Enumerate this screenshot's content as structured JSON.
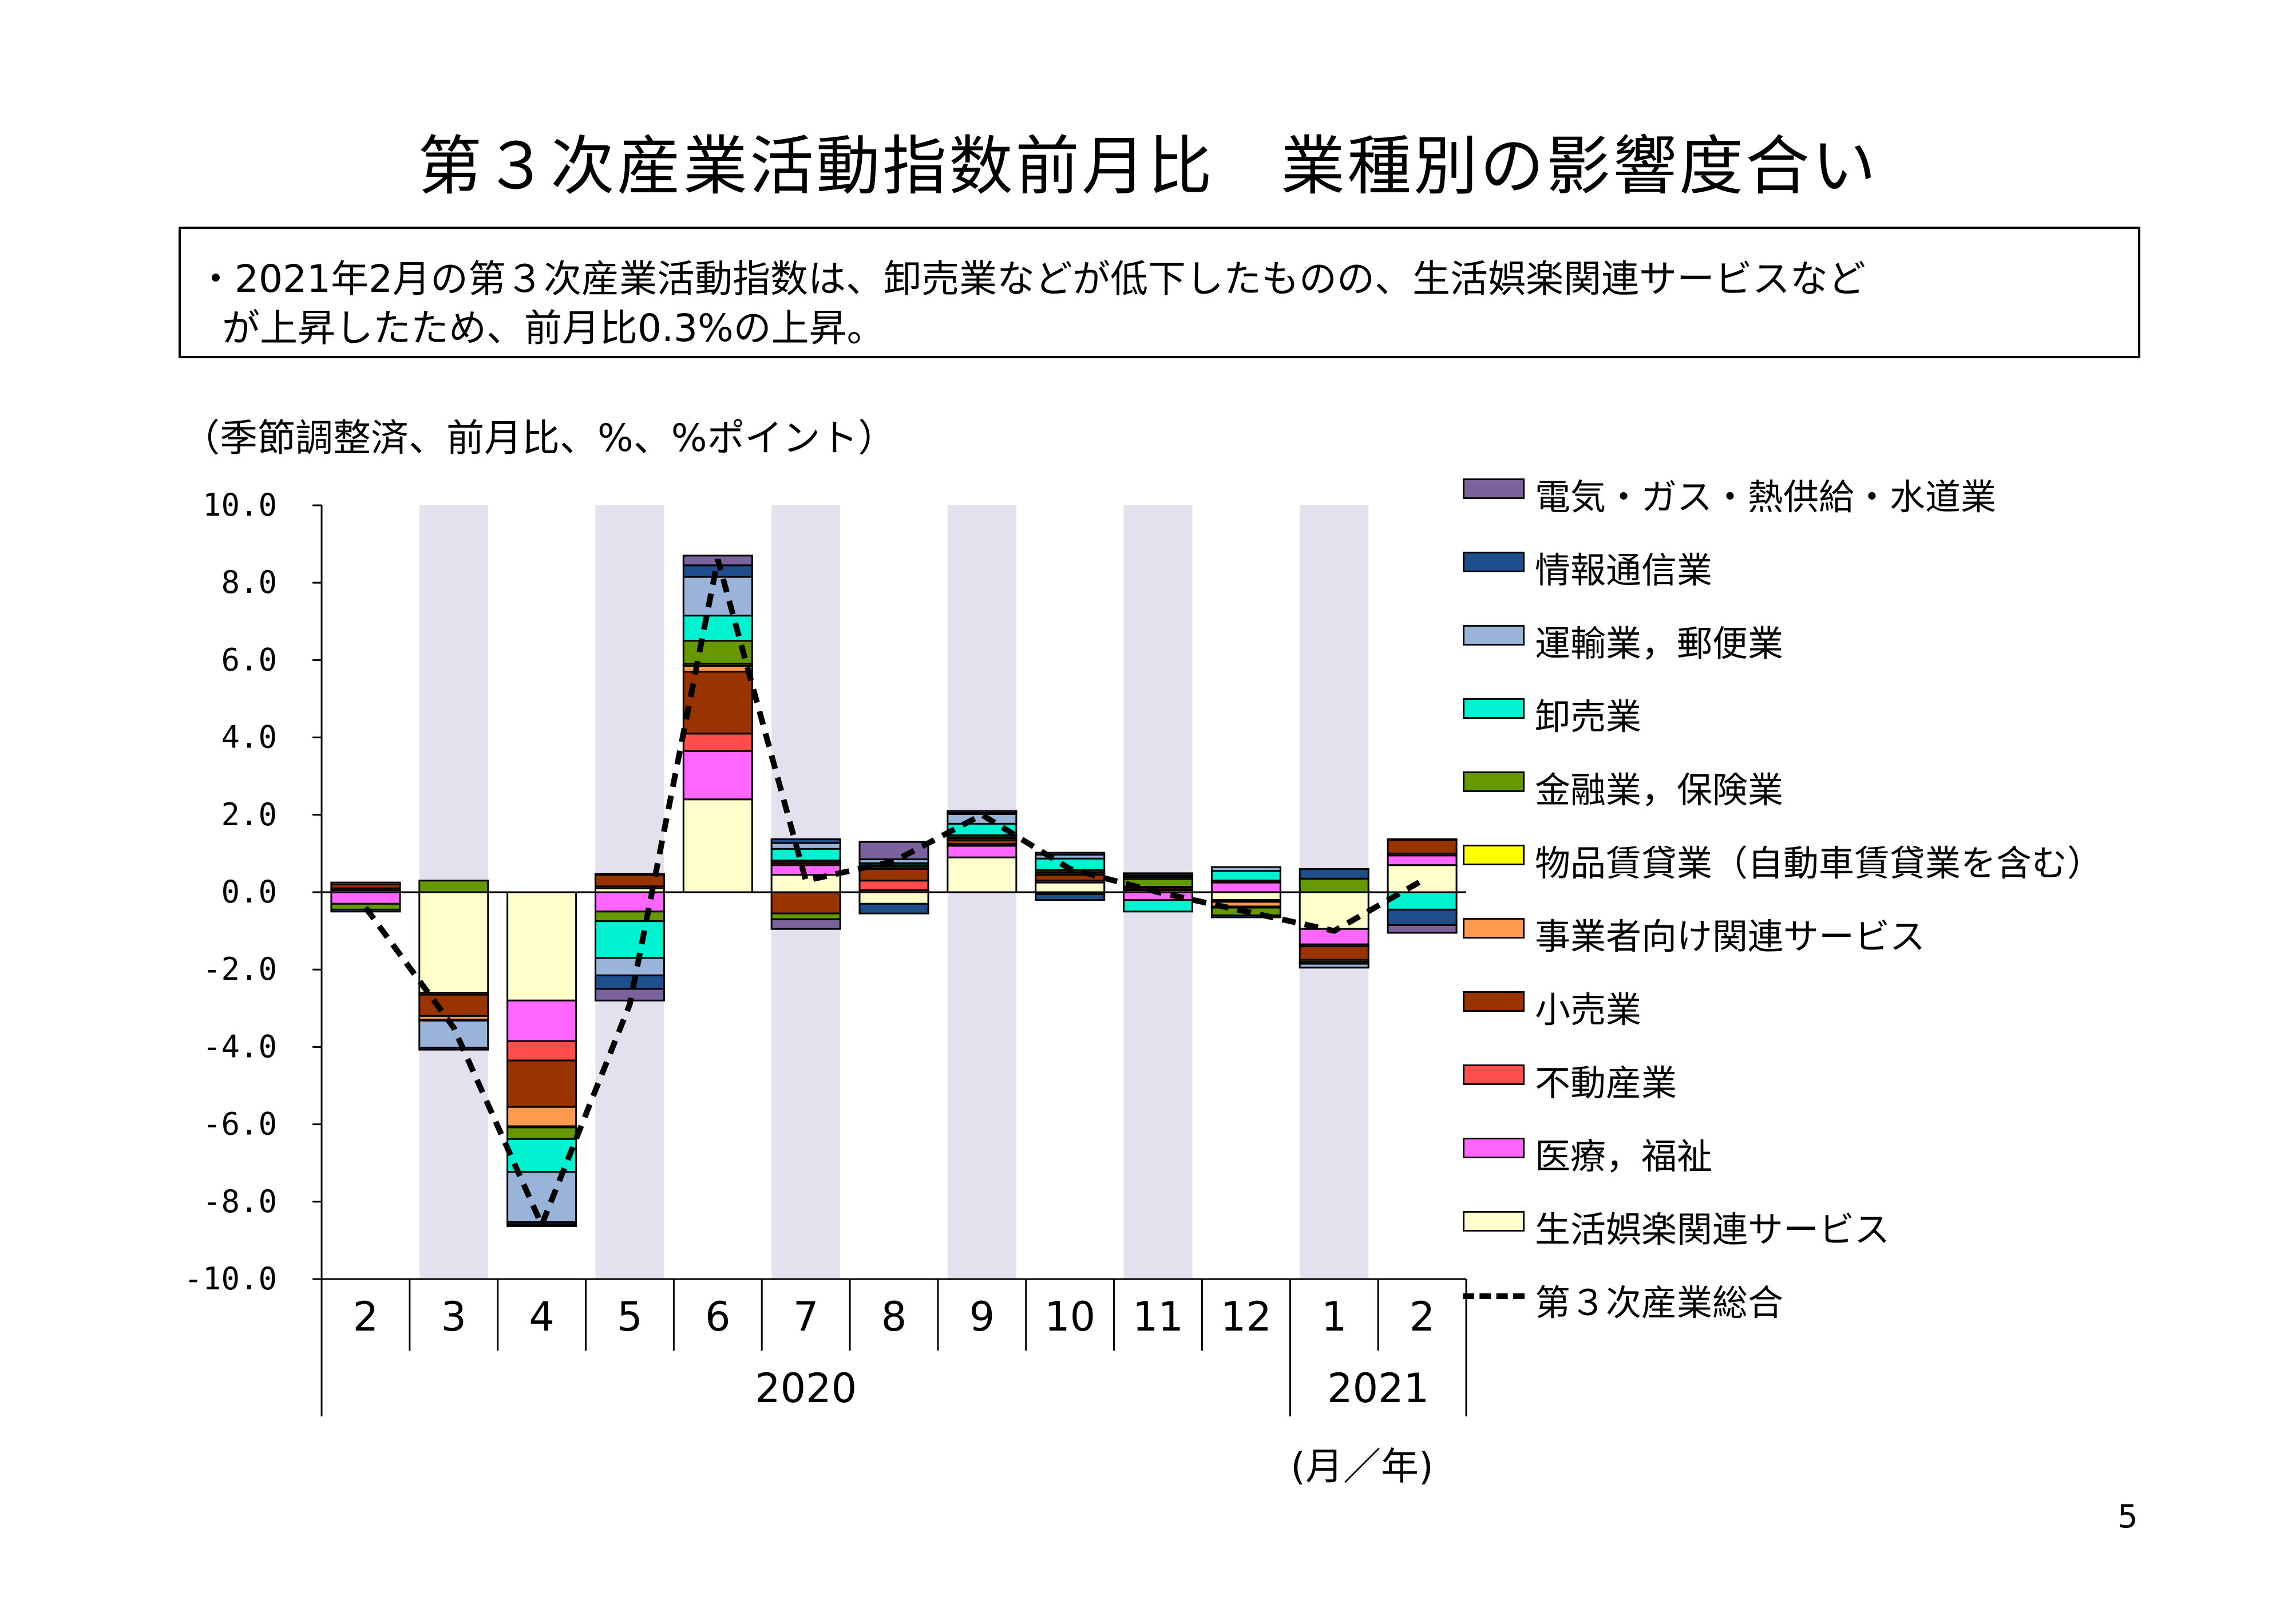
{
  "title": "第３次産業活動指数前月比　業種別の影響度合い",
  "summary": {
    "line1": "・2021年2月の第３次産業活動指数は、卸売業などが低下したものの、生活娯楽関連サービスなど",
    "line2": "が上昇したため、前月比0.3%の上昇。"
  },
  "unit_note": "（季節調整済、前月比、%、%ポイント）",
  "page_number": "5",
  "chart_data": {
    "type": "bar",
    "stacked": true,
    "categories": [
      "2",
      "3",
      "4",
      "5",
      "6",
      "7",
      "8",
      "9",
      "10",
      "11",
      "12",
      "1",
      "2"
    ],
    "year_labels": [
      {
        "label": "2020",
        "from": 0,
        "to": 10
      },
      {
        "label": "2021",
        "from": 11,
        "to": 12
      }
    ],
    "x_unit_label": "(月／年)",
    "ylim": [
      -10,
      10
    ],
    "yticks": [
      10,
      8,
      6,
      4,
      2,
      0,
      -2,
      -4,
      -6,
      -8,
      -10
    ],
    "ytick_labels": [
      "10.0",
      "8.0",
      "6.0",
      "4.0",
      "2.0",
      "0.0",
      "-2.0",
      "-4.0",
      "-6.0",
      "-8.0",
      "-10.0"
    ],
    "shaded_categories": [
      1,
      3,
      5,
      7,
      9,
      11
    ],
    "shade_color": "#e4e0ee",
    "series": [
      {
        "name": "生活娯楽関連サービス",
        "color": "#ffffcc",
        "values": [
          0.05,
          -2.6,
          -2.8,
          0.1,
          2.4,
          0.45,
          -0.3,
          0.9,
          0.25,
          0.05,
          -0.2,
          -0.95,
          0.7
        ]
      },
      {
        "name": "医療，福祉",
        "color": "#ff66ff",
        "values": [
          -0.3,
          0.0,
          -1.05,
          -0.5,
          1.25,
          0.25,
          0.05,
          0.3,
          0.05,
          -0.2,
          0.25,
          -0.4,
          0.25
        ]
      },
      {
        "name": "不動産業",
        "color": "#ff4d4d",
        "values": [
          0.05,
          -0.05,
          -0.5,
          0.05,
          0.45,
          0.05,
          0.25,
          0.05,
          -0.05,
          0.02,
          -0.05,
          -0.05,
          0.05
        ]
      },
      {
        "name": "小売業",
        "color": "#993300",
        "values": [
          0.1,
          -0.55,
          -1.2,
          0.3,
          1.6,
          -0.55,
          0.3,
          0.1,
          0.15,
          0.05,
          0.05,
          -0.35,
          0.35
        ]
      },
      {
        "name": "事業者向け関連サービス",
        "color": "#ff9950",
        "values": [
          0.05,
          -0.1,
          -0.5,
          0.02,
          0.15,
          0.05,
          0.05,
          0.05,
          0.05,
          0.02,
          -0.12,
          -0.05,
          0.02
        ]
      },
      {
        "name": "物品賃貸業（自動車賃貸業を含む）",
        "color": "#ffff00",
        "values": [
          0.0,
          -0.02,
          -0.03,
          0.0,
          0.05,
          0.02,
          0.0,
          0.02,
          0.02,
          0.0,
          -0.03,
          0.0,
          0.0
        ]
      },
      {
        "name": "金融業，保険業",
        "color": "#669900",
        "values": [
          -0.15,
          0.3,
          -0.3,
          -0.25,
          0.6,
          -0.15,
          0.05,
          0.05,
          0.05,
          0.2,
          -0.2,
          0.35,
          0.0
        ]
      },
      {
        "name": "卸売業",
        "color": "#00f2d0",
        "values": [
          0.0,
          0.0,
          -0.85,
          -0.95,
          0.65,
          0.3,
          0.05,
          0.3,
          0.3,
          -0.3,
          0.25,
          -0.05,
          -0.45
        ]
      },
      {
        "name": "運輸業，郵便業",
        "color": "#99b3d9",
        "values": [
          -0.05,
          -0.7,
          -1.3,
          -0.45,
          1.0,
          0.15,
          0.1,
          0.25,
          0.1,
          0.05,
          0.1,
          -0.1,
          0.0
        ]
      },
      {
        "name": "情報通信業",
        "color": "#1f4e8c",
        "values": [
          0.0,
          -0.05,
          -0.05,
          -0.35,
          0.3,
          0.1,
          -0.25,
          0.03,
          -0.15,
          0.05,
          -0.05,
          0.25,
          -0.4
        ]
      },
      {
        "name": "電気・ガス・熱供給・水道業",
        "color": "#7b629c",
        "values": [
          0.0,
          0.0,
          -0.05,
          -0.3,
          0.25,
          -0.25,
          0.45,
          0.05,
          0.05,
          0.05,
          0.0,
          0.0,
          -0.2
        ]
      }
    ],
    "total": {
      "name": "第３次産業総合",
      "color": "#000000",
      "values": [
        -0.4,
        -3.5,
        -8.6,
        -2.9,
        8.6,
        0.3,
        0.8,
        2.0,
        0.6,
        0.0,
        -0.5,
        -1.0,
        0.3
      ]
    },
    "legend_order": [
      "電気・ガス・熱供給・水道業",
      "情報通信業",
      "運輸業，郵便業",
      "卸売業",
      "金融業，保険業",
      "物品賃貸業（自動車賃貸業を含む）",
      "事業者向け関連サービス",
      "小売業",
      "不動産業",
      "医療，福祉",
      "生活娯楽関連サービス",
      "第３次産業総合"
    ]
  }
}
